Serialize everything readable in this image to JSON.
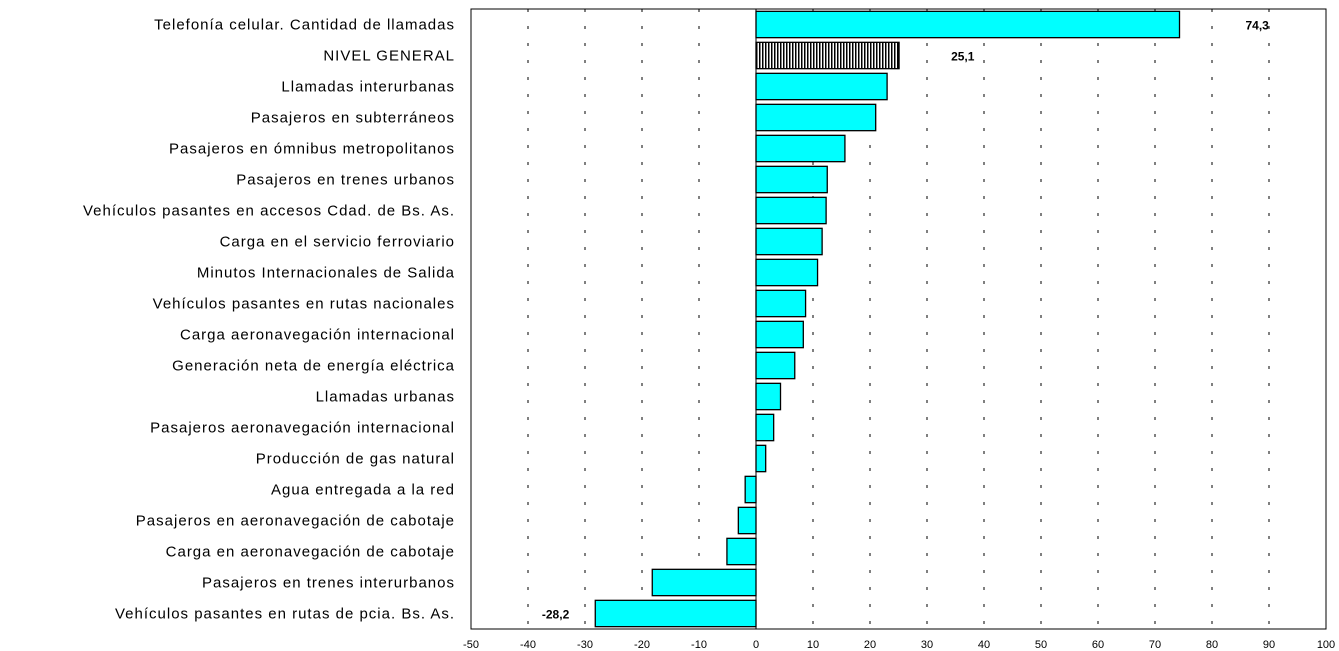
{
  "chart_data": {
    "type": "bar",
    "orientation": "horizontal",
    "title": "",
    "xlabel": "",
    "ylabel": "",
    "xlim": [
      -50,
      100
    ],
    "x_ticks": [
      -50,
      -40,
      -30,
      -20,
      -10,
      0,
      10,
      20,
      30,
      40,
      50,
      60,
      70,
      80,
      90,
      100
    ],
    "grid": "vertical dashed",
    "categories": [
      "Telefonía celular. Cantidad de llamadas",
      "NIVEL GENERAL",
      "Llamadas interurbanas",
      "Pasajeros en subterráneos",
      "Pasajeros en ómnibus metropolitanos",
      "Pasajeros en trenes urbanos",
      "Vehículos pasantes en accesos Cdad. de Bs. As.",
      "Carga en el servicio ferroviario",
      "Minutos Internacionales de Salida",
      "Vehículos pasantes en rutas nacionales",
      "Carga aeronavegación internacional",
      "Generación neta de energía eléctrica",
      "Llamadas urbanas",
      "Pasajeros aeronavegación internacional",
      "Producción de gas natural",
      "Agua entregada a la red",
      "Pasajeros en aeronavegación de cabotaje",
      "Carga en aeronavegación de cabotaje",
      "Pasajeros en trenes interurbanos",
      "Vehículos pasantes en rutas de pcia. Bs. As."
    ],
    "values": [
      74.3,
      25.1,
      23.0,
      21.0,
      15.6,
      12.5,
      12.3,
      11.6,
      10.8,
      8.7,
      8.3,
      6.8,
      4.3,
      3.1,
      1.7,
      -1.9,
      -3.1,
      -5.1,
      -18.2,
      -28.2
    ],
    "highlight_index": 1,
    "data_labels": [
      {
        "index": 0,
        "text": "74,3"
      },
      {
        "index": 1,
        "text": "25,1"
      },
      {
        "index": 19,
        "text": "-28,2"
      }
    ],
    "colors": {
      "bar_fill": "#00ffff",
      "bar_stroke": "#000000",
      "highlight_pattern_fg": "#000000",
      "highlight_pattern_bg": "#ffffff",
      "grid": "#000000"
    }
  }
}
